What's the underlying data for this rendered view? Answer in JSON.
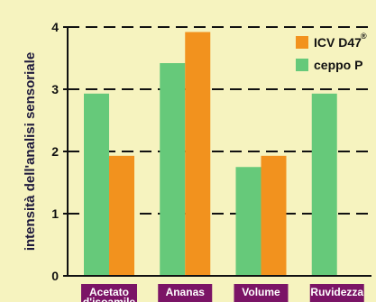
{
  "chart_data": {
    "type": "bar",
    "title": "",
    "xlabel": "",
    "ylabel": "intensità dell'analisi sensoriale",
    "ylim": [
      0,
      4
    ],
    "yticks": [
      "0",
      "1",
      "2",
      "3",
      "4"
    ],
    "categories": [
      "Acetato d'isoamile",
      "Ananas",
      "Volume",
      "Ruvidezza"
    ],
    "category_lines": [
      [
        "Acetato",
        "d'isoamile"
      ],
      [
        "Ananas"
      ],
      [
        "Volume"
      ],
      [
        "Ruvidezza"
      ]
    ],
    "series": [
      {
        "name": "ceppo P",
        "color": "#66c97a",
        "values": [
          2.93,
          3.42,
          1.75,
          2.93
        ]
      },
      {
        "name": "ICV D47",
        "name_sup": "®",
        "color": "#f2921e",
        "values": [
          1.93,
          3.92,
          1.93,
          null
        ]
      }
    ],
    "legend": {
      "placement": "top-right",
      "items": [
        {
          "label": "ICV D47",
          "sup": "®",
          "color": "#f2921e"
        },
        {
          "label": "ceppo P",
          "color": "#66c97a"
        }
      ]
    },
    "grid": "dashed horizontal",
    "category_label_bg": "#7b1466"
  }
}
